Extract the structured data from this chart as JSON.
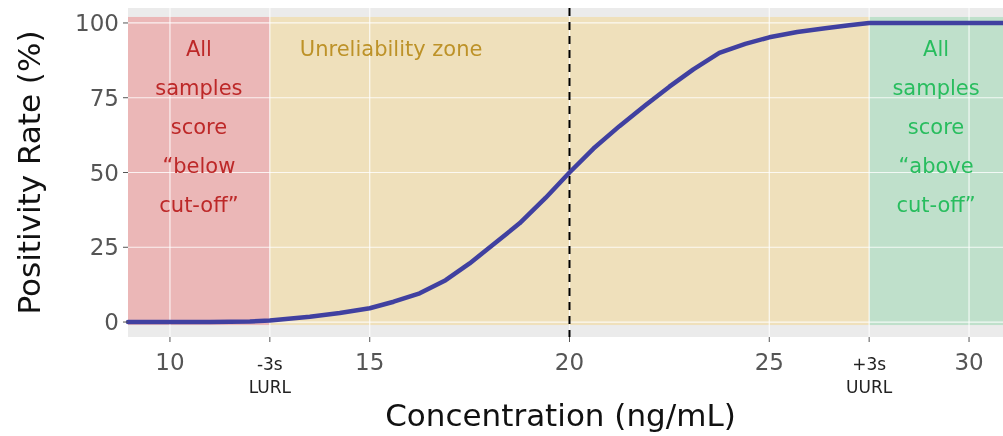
{
  "chart_data": {
    "type": "line",
    "xlabel": "Concentration (ng/mL)",
    "ylabel": "Positivity Rate (%)",
    "xlim": [
      8.95,
      30.85
    ],
    "ylim": [
      -5,
      105
    ],
    "xticks": [
      10,
      {
        "value": 12.5,
        "label": null
      },
      15,
      20,
      25,
      {
        "value": 27.5,
        "label": null
      },
      30
    ],
    "annotations": [
      "-3s\nLURL",
      "+3s\nUURL"
    ],
    "yticks": [
      0,
      25,
      50,
      75,
      100
    ],
    "grid": true,
    "bands": [
      {
        "axis": "x",
        "from": 8.95,
        "to": 12.5,
        "label": "All\nsamples\nscore\n“below\ncut-off”",
        "color": "#ebb7b7"
      },
      {
        "axis": "x",
        "from": 12.5,
        "to": 27.5,
        "label": "Unreliability zone",
        "color": "#efe0bb"
      },
      {
        "axis": "x",
        "from": 27.5,
        "to": 30.85,
        "label": "All\nsamples\nscore\n“above\ncut-off”",
        "color": "#bfe0cb"
      }
    ],
    "ref_lines": [
      {
        "axis": "x",
        "value": 20,
        "color": "#000000",
        "line_style": "dashed"
      }
    ],
    "series": [
      {
        "color": "#4040a0",
        "x": [
          8.95,
          10,
          11,
          12,
          12.5,
          13.5,
          14.25,
          15,
          15.6,
          16.25,
          16.9,
          17.5,
          18.1,
          18.75,
          19.4,
          20,
          20.6,
          21.25,
          21.9,
          22.5,
          23.1,
          23.75,
          24.4,
          25,
          25.7,
          26.4,
          27,
          27.5,
          28.5,
          30.85
        ],
        "values": [
          0,
          0,
          0,
          0.2,
          0.5,
          1.8,
          3,
          4.6,
          6.8,
          9.6,
          14,
          19.6,
          26,
          33,
          41.5,
          50,
          58,
          65.5,
          72.5,
          78.7,
          84.5,
          90,
          93,
          95.2,
          97,
          98.2,
          99.2,
          100,
          100,
          100
        ]
      }
    ]
  }
}
